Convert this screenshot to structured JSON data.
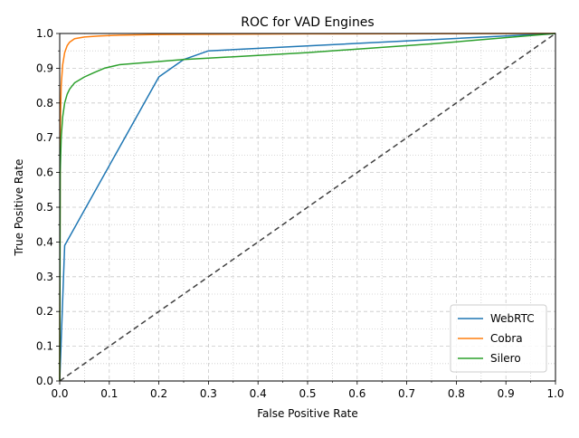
{
  "chart_data": {
    "type": "line",
    "title": "ROC for VAD Engines",
    "xlabel": "False Positive Rate",
    "ylabel": "True Positive Rate",
    "xlim": [
      0,
      1
    ],
    "ylim": [
      0,
      1
    ],
    "grid": true,
    "major_ticks": [
      "0.0",
      "0.1",
      "0.2",
      "0.3",
      "0.4",
      "0.5",
      "0.6",
      "0.7",
      "0.8",
      "0.9",
      "1.0"
    ],
    "legend_position": "lower-right",
    "series": [
      {
        "name": "WebRTC",
        "color": "#1f77b4",
        "x": [
          0,
          0.01,
          0.2,
          0.25,
          0.3,
          1.0
        ],
        "y": [
          0,
          0.39,
          0.875,
          0.925,
          0.95,
          1.0
        ]
      },
      {
        "name": "Cobra",
        "color": "#ff7f0e",
        "x": [
          0,
          0.001,
          0.003,
          0.006,
          0.01,
          0.015,
          0.02,
          0.03,
          0.05,
          0.08,
          0.12,
          0.2,
          0.5,
          1.0
        ],
        "y": [
          0,
          0.72,
          0.85,
          0.91,
          0.945,
          0.965,
          0.975,
          0.985,
          0.99,
          0.993,
          0.995,
          0.997,
          0.999,
          1.0
        ]
      },
      {
        "name": "Silero",
        "color": "#2ca02c",
        "x": [
          0,
          0.001,
          0.003,
          0.006,
          0.01,
          0.015,
          0.02,
          0.03,
          0.05,
          0.07,
          0.09,
          0.12,
          0.25,
          0.5,
          0.75,
          1.0
        ],
        "y": [
          0,
          0.6,
          0.7,
          0.76,
          0.8,
          0.825,
          0.84,
          0.858,
          0.875,
          0.888,
          0.9,
          0.91,
          0.925,
          0.945,
          0.97,
          1.0
        ]
      },
      {
        "name": "chance",
        "color": "#404040",
        "dashed": true,
        "show_in_legend": false,
        "x": [
          0,
          1
        ],
        "y": [
          0,
          1
        ]
      }
    ]
  }
}
